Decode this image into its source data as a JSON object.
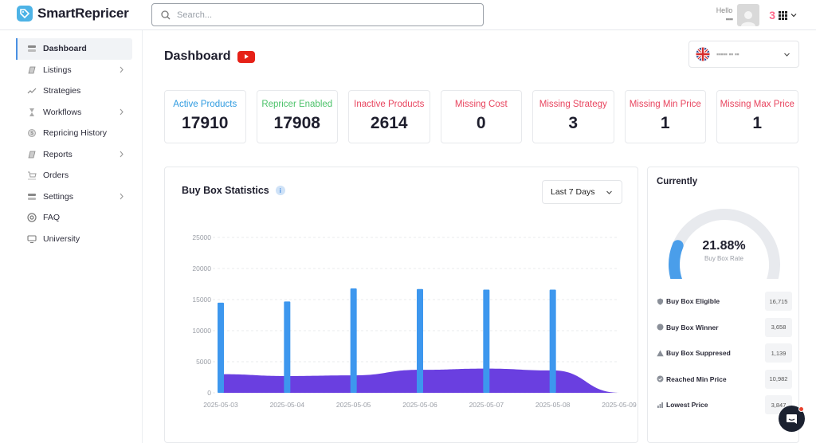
{
  "app": {
    "name": "SmartRepricer"
  },
  "search": {
    "placeholder": "Search..."
  },
  "user": {
    "greeting": "Hello",
    "name_obscured": "▪▪▪▪"
  },
  "sidebar": {
    "items": [
      {
        "label": "Dashboard",
        "icon": "dashboard-icon",
        "active": true,
        "has_children": false
      },
      {
        "label": "Listings",
        "icon": "listings-icon",
        "active": false,
        "has_children": true
      },
      {
        "label": "Strategies",
        "icon": "strategies-icon",
        "active": false,
        "has_children": false
      },
      {
        "label": "Workflows",
        "icon": "hourglass-icon",
        "active": false,
        "has_children": true
      },
      {
        "label": "Repricing History",
        "icon": "history-icon",
        "active": false,
        "has_children": false
      },
      {
        "label": "Reports",
        "icon": "reports-icon",
        "active": false,
        "has_children": true
      },
      {
        "label": "Orders",
        "icon": "orders-icon",
        "active": false,
        "has_children": false
      },
      {
        "label": "Settings",
        "icon": "settings-icon",
        "active": false,
        "has_children": true
      },
      {
        "label": "FAQ",
        "icon": "lifebuoy-icon",
        "active": false,
        "has_children": false
      },
      {
        "label": "University",
        "icon": "monitor-icon",
        "active": false,
        "has_children": false
      }
    ]
  },
  "page": {
    "title": "Dashboard"
  },
  "marketplace": {
    "name_obscured": "▪▪▪▪▪ ▪▪ ▪▪"
  },
  "stats": [
    {
      "label": "Active Products",
      "value": "17910",
      "color": "#2f9be0"
    },
    {
      "label": "Repricer Enabled",
      "value": "17908",
      "color": "#4cc26a"
    },
    {
      "label": "Inactive Products",
      "value": "2614",
      "color": "#e8445e"
    },
    {
      "label": "Missing Cost",
      "value": "0",
      "color": "#e8445e"
    },
    {
      "label": "Missing Strategy",
      "value": "3",
      "color": "#e8445e"
    },
    {
      "label": "Missing Min Price",
      "value": "1",
      "color": "#e8445e"
    },
    {
      "label": "Missing Max Price",
      "value": "1",
      "color": "#e8445e"
    }
  ],
  "buybox": {
    "title": "Buy Box Statistics",
    "range": "Last 7 Days"
  },
  "chart_data": {
    "type": "bar",
    "categories": [
      "2025-05-03",
      "2025-05-04",
      "2025-05-05",
      "2025-05-06",
      "2025-05-07",
      "2025-05-08",
      "2025-05-09"
    ],
    "series": [
      {
        "type": "bar",
        "values": [
          14500,
          14700,
          16800,
          16700,
          16600,
          16600,
          0
        ],
        "color": "#3d97ee"
      },
      {
        "type": "area",
        "values": [
          3000,
          2700,
          2800,
          3700,
          3900,
          3600,
          0
        ],
        "color": "#6a3fe0"
      }
    ],
    "yticks": [
      0,
      5000,
      10000,
      15000,
      20000,
      25000
    ],
    "ylim": [
      0,
      25000
    ],
    "grid": true
  },
  "currently": {
    "title": "Currently",
    "rate": "21.88%",
    "rate_fraction": 0.2188,
    "rate_label": "Buy Box Rate",
    "metrics": [
      {
        "label": "Buy Box Eligible",
        "value": "16,715",
        "icon": "shield-icon"
      },
      {
        "label": "Buy Box Winner",
        "value": "3,658",
        "icon": "award-icon"
      },
      {
        "label": "Buy Box Suppresed",
        "value": "1,139",
        "icon": "warning-icon"
      },
      {
        "label": "Reached Min Price",
        "value": "10,982",
        "icon": "check-circle-icon"
      },
      {
        "label": "Lowest Price",
        "value": "3,847",
        "icon": "bars-icon"
      }
    ]
  },
  "colors": {
    "accent": "#4a90e2",
    "danger": "#e8445e",
    "bar": "#3d97ee",
    "area": "#6a3fe0"
  }
}
